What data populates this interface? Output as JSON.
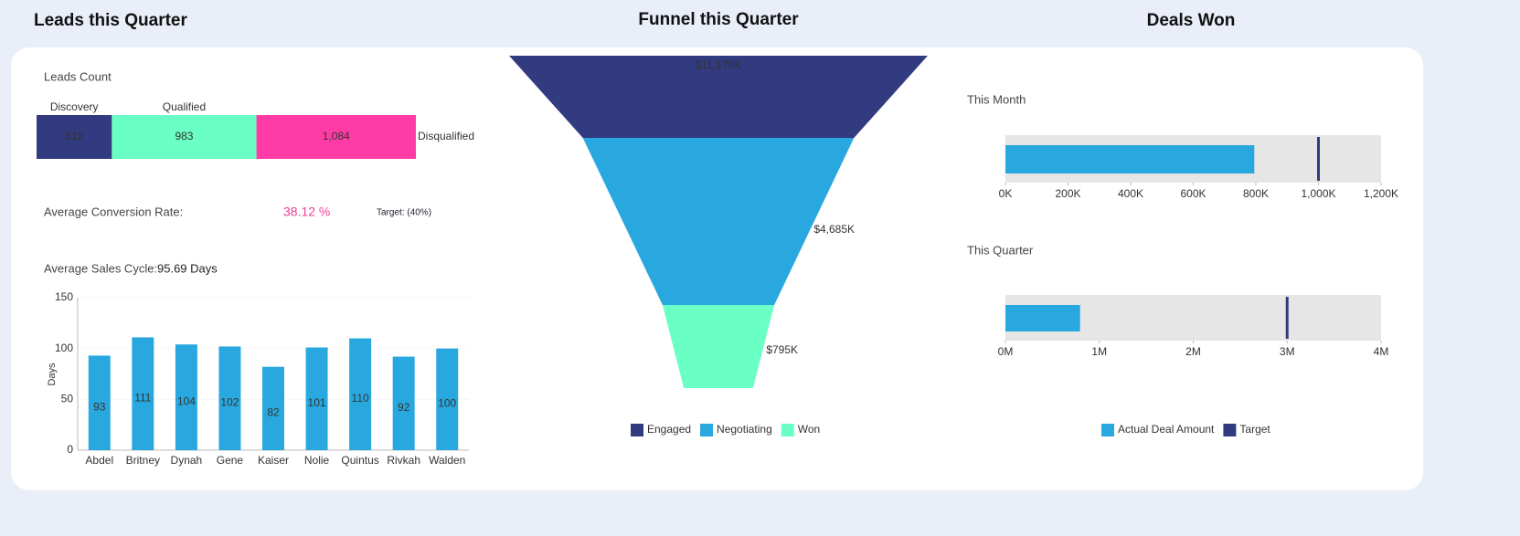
{
  "sections": {
    "leads": "Leads this Quarter",
    "funnel": "Funnel this Quarter",
    "deals": "Deals Won"
  },
  "conversion": {
    "label": "Average Conversion Rate:",
    "value": "38.12 %",
    "target": "Target: (40%)"
  },
  "chart_data": [
    {
      "type": "stacked-bar",
      "title": "Leads Count",
      "series": [
        {
          "name": "Discovery",
          "color": "#323a80",
          "values": [
            512
          ]
        },
        {
          "name": "Qualified",
          "color": "#6affc4",
          "values": [
            983
          ]
        },
        {
          "name": "Disqualified",
          "color": "#ff3ba6",
          "values": [
            1084
          ],
          "value_labels": [
            "1,084"
          ]
        }
      ]
    },
    {
      "type": "bar",
      "title": "Average Sales Cycle:",
      "subtitle": "95.69 Days",
      "y_label": "Days",
      "categories": [
        "Abdel",
        "Britney",
        "Dynah",
        "Gene",
        "Kaiser",
        "Nolie",
        "Quintus",
        "Rivkah",
        "Walden"
      ],
      "values": [
        93,
        111,
        104,
        102,
        82,
        101,
        110,
        92,
        100
      ],
      "color": "#29a8e0",
      "ylim": [
        0,
        150
      ],
      "yticks": [
        0,
        50,
        100,
        150
      ],
      "grid": true
    },
    {
      "type": "funnel",
      "categories": [
        "Engaged",
        "Negotiating",
        "Won"
      ],
      "values": [
        11170,
        4685,
        795
      ],
      "value_labels": [
        "$11,170K",
        "$4,685K",
        "$795K"
      ],
      "colors": [
        "#323a80",
        "#29a8e0",
        "#6affc4"
      ]
    },
    {
      "type": "bullet",
      "series": [
        {
          "name": "Actual Deal Amount",
          "color": "#29a8e0"
        },
        {
          "name": "Target",
          "color": "#323a80"
        }
      ],
      "panels": [
        {
          "title": "This Month",
          "actual": 795000,
          "target": 1000000,
          "xlim": [
            0,
            1200000
          ],
          "xticks": [
            {
              "value": 0,
              "label": "0K"
            },
            {
              "value": 200000,
              "label": "200K"
            },
            {
              "value": 400000,
              "label": "400K"
            },
            {
              "value": 600000,
              "label": "600K"
            },
            {
              "value": 800000,
              "label": "800K"
            },
            {
              "value": 1000000,
              "label": "1,000K"
            },
            {
              "value": 1200000,
              "label": "1,200K"
            }
          ]
        },
        {
          "title": "This Quarter",
          "actual": 795000,
          "target": 3000000,
          "xlim": [
            0,
            4000000
          ],
          "xticks": [
            {
              "value": 0,
              "label": "0M"
            },
            {
              "value": 1000000,
              "label": "1M"
            },
            {
              "value": 2000000,
              "label": "2M"
            },
            {
              "value": 3000000,
              "label": "3M"
            },
            {
              "value": 4000000,
              "label": "4M"
            }
          ]
        }
      ]
    }
  ]
}
